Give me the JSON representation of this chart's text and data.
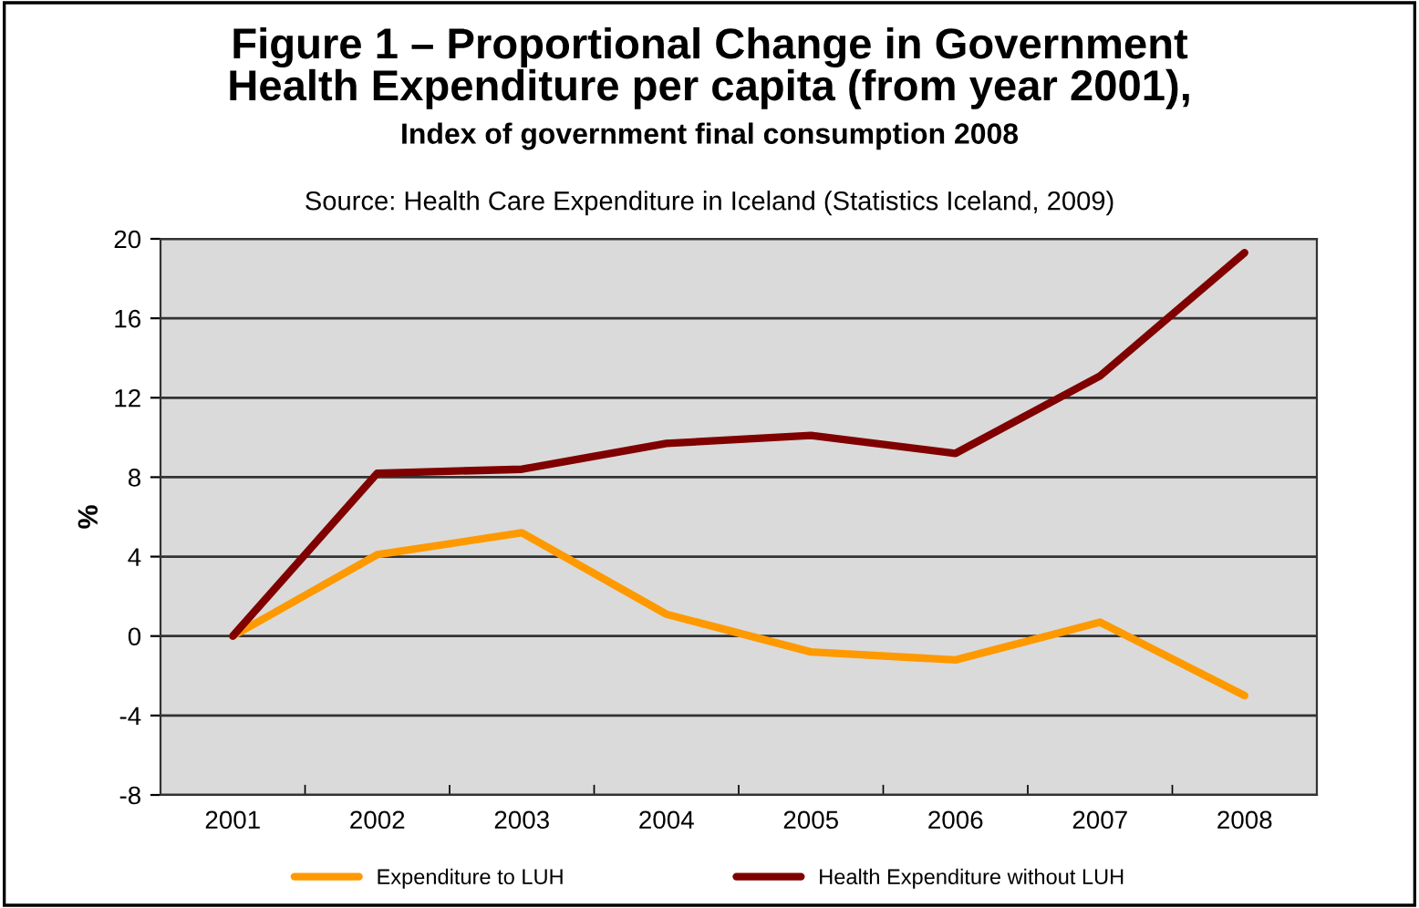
{
  "chart_data": {
    "type": "line",
    "title": "Figure 1 – Proportional Change in Government\nHealth Expenditure per capita (from year 2001),",
    "subtitle": "Index of government final consumption 2008",
    "annotations": [
      "Source: Health Care Expenditure in Iceland (Statistics Iceland, 2009)"
    ],
    "ylabel": "%",
    "categories": [
      "2001",
      "2002",
      "2003",
      "2004",
      "2005",
      "2006",
      "2007",
      "2008"
    ],
    "series": [
      {
        "name": "Expenditure to LUH",
        "color": "#ff9900",
        "values": [
          0,
          4.1,
          5.2,
          1.1,
          -0.8,
          -1.2,
          0.7,
          -3.0
        ]
      },
      {
        "name": "Health Expenditure without LUH",
        "color": "#800000",
        "values": [
          0,
          8.2,
          8.4,
          9.7,
          10.1,
          9.2,
          13.1,
          19.3
        ]
      }
    ],
    "ylim": [
      -8,
      20
    ],
    "yticks": [
      -8,
      -4,
      0,
      4,
      8,
      12,
      16,
      20
    ],
    "grid": "y",
    "legend": "bottom",
    "marker": "none",
    "line_style": "solid"
  }
}
